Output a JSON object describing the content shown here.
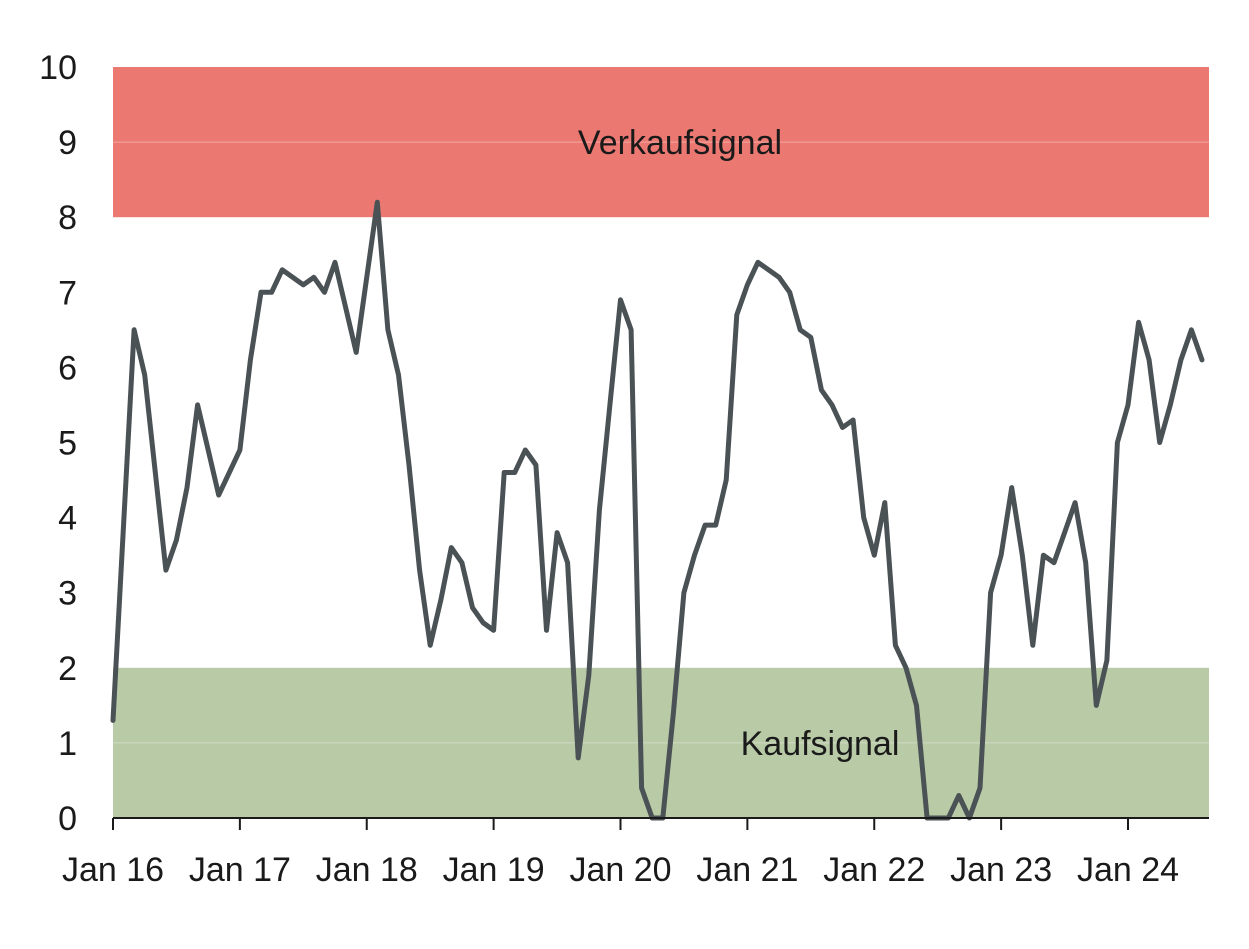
{
  "chart_data": {
    "type": "line",
    "title": "",
    "xlabel": "",
    "ylabel": "",
    "ylim": [
      0,
      10
    ],
    "xlim": [
      "2016-01",
      "2024-09"
    ],
    "grid": false,
    "y_ticks": [
      0,
      1,
      2,
      3,
      4,
      5,
      6,
      7,
      8,
      9,
      10
    ],
    "x_ticks": [
      "Jan 16",
      "Jan 17",
      "Jan 18",
      "Jan 19",
      "Jan 20",
      "Jan 21",
      "Jan 22",
      "Jan 23",
      "Jan 24"
    ],
    "zones": [
      {
        "label": "Verkaufsignal",
        "from": 8,
        "to": 10,
        "color": "#ec7872"
      },
      {
        "label": "Kaufsignal",
        "from": 0,
        "to": 2,
        "color": "#b9caa7"
      }
    ],
    "series": [
      {
        "color": "#4a5256",
        "points": [
          [
            "2016-01",
            1.3
          ],
          [
            "2016-03",
            6.5
          ],
          [
            "2016-04",
            5.9
          ],
          [
            "2016-05",
            4.6
          ],
          [
            "2016-06",
            3.3
          ],
          [
            "2016-07",
            3.7
          ],
          [
            "2016-08",
            4.4
          ],
          [
            "2016-09",
            5.5
          ],
          [
            "2016-10",
            4.9
          ],
          [
            "2016-11",
            4.3
          ],
          [
            "2017-01",
            4.9
          ],
          [
            "2017-02",
            6.1
          ],
          [
            "2017-03",
            7.0
          ],
          [
            "2017-04",
            7.0
          ],
          [
            "2017-05",
            7.3
          ],
          [
            "2017-07",
            7.1
          ],
          [
            "2017-08",
            7.2
          ],
          [
            "2017-09",
            7.0
          ],
          [
            "2017-10",
            7.4
          ],
          [
            "2017-11",
            6.8
          ],
          [
            "2017-12",
            6.2
          ],
          [
            "2018-02",
            8.2
          ],
          [
            "2018-03",
            6.5
          ],
          [
            "2018-04",
            5.9
          ],
          [
            "2018-05",
            4.7
          ],
          [
            "2018-06",
            3.3
          ],
          [
            "2018-07",
            2.3
          ],
          [
            "2018-08",
            2.9
          ],
          [
            "2018-09",
            3.6
          ],
          [
            "2018-10",
            3.4
          ],
          [
            "2018-11",
            2.8
          ],
          [
            "2018-12",
            2.6
          ],
          [
            "2019-01",
            2.5
          ],
          [
            "2019-02",
            4.6
          ],
          [
            "2019-03",
            4.6
          ],
          [
            "2019-04",
            4.9
          ],
          [
            "2019-05",
            4.7
          ],
          [
            "2019-06",
            2.5
          ],
          [
            "2019-07",
            3.8
          ],
          [
            "2019-08",
            3.4
          ],
          [
            "2019-09",
            0.8
          ],
          [
            "2019-10",
            1.9
          ],
          [
            "2019-11",
            4.1
          ],
          [
            "2019-12",
            5.5
          ],
          [
            "2020-01",
            6.9
          ],
          [
            "2020-02",
            6.5
          ],
          [
            "2020-03",
            0.4
          ],
          [
            "2020-04",
            0.0
          ],
          [
            "2020-05",
            0.0
          ],
          [
            "2020-06",
            1.4
          ],
          [
            "2020-07",
            3.0
          ],
          [
            "2020-08",
            3.5
          ],
          [
            "2020-09",
            3.9
          ],
          [
            "2020-10",
            3.9
          ],
          [
            "2020-11",
            4.5
          ],
          [
            "2020-12",
            6.7
          ],
          [
            "2021-01",
            7.1
          ],
          [
            "2021-02",
            7.4
          ],
          [
            "2021-04",
            7.2
          ],
          [
            "2021-05",
            7.0
          ],
          [
            "2021-06",
            6.5
          ],
          [
            "2021-07",
            6.4
          ],
          [
            "2021-08",
            5.7
          ],
          [
            "2021-09",
            5.5
          ],
          [
            "2021-10",
            5.2
          ],
          [
            "2021-11",
            5.3
          ],
          [
            "2021-12",
            4.0
          ],
          [
            "2022-01",
            3.5
          ],
          [
            "2022-02",
            4.2
          ],
          [
            "2022-03",
            2.3
          ],
          [
            "2022-04",
            2.0
          ],
          [
            "2022-05",
            1.5
          ],
          [
            "2022-06",
            0.0
          ],
          [
            "2022-08",
            0.0
          ],
          [
            "2022-09",
            0.3
          ],
          [
            "2022-10",
            0.0
          ],
          [
            "2022-11",
            0.4
          ],
          [
            "2022-12",
            3.0
          ],
          [
            "2023-01",
            3.5
          ],
          [
            "2023-02",
            4.4
          ],
          [
            "2023-03",
            3.5
          ],
          [
            "2023-04",
            2.3
          ],
          [
            "2023-05",
            3.5
          ],
          [
            "2023-06",
            3.4
          ],
          [
            "2023-07",
            3.8
          ],
          [
            "2023-08",
            4.2
          ],
          [
            "2023-09",
            3.4
          ],
          [
            "2023-10",
            1.5
          ],
          [
            "2023-11",
            2.1
          ],
          [
            "2023-12",
            5.0
          ],
          [
            "2024-01",
            5.5
          ],
          [
            "2024-02",
            6.6
          ],
          [
            "2024-03",
            6.1
          ],
          [
            "2024-04",
            5.0
          ],
          [
            "2024-05",
            5.5
          ],
          [
            "2024-06",
            6.1
          ],
          [
            "2024-07",
            6.5
          ],
          [
            "2024-08",
            6.1
          ]
        ]
      }
    ]
  }
}
